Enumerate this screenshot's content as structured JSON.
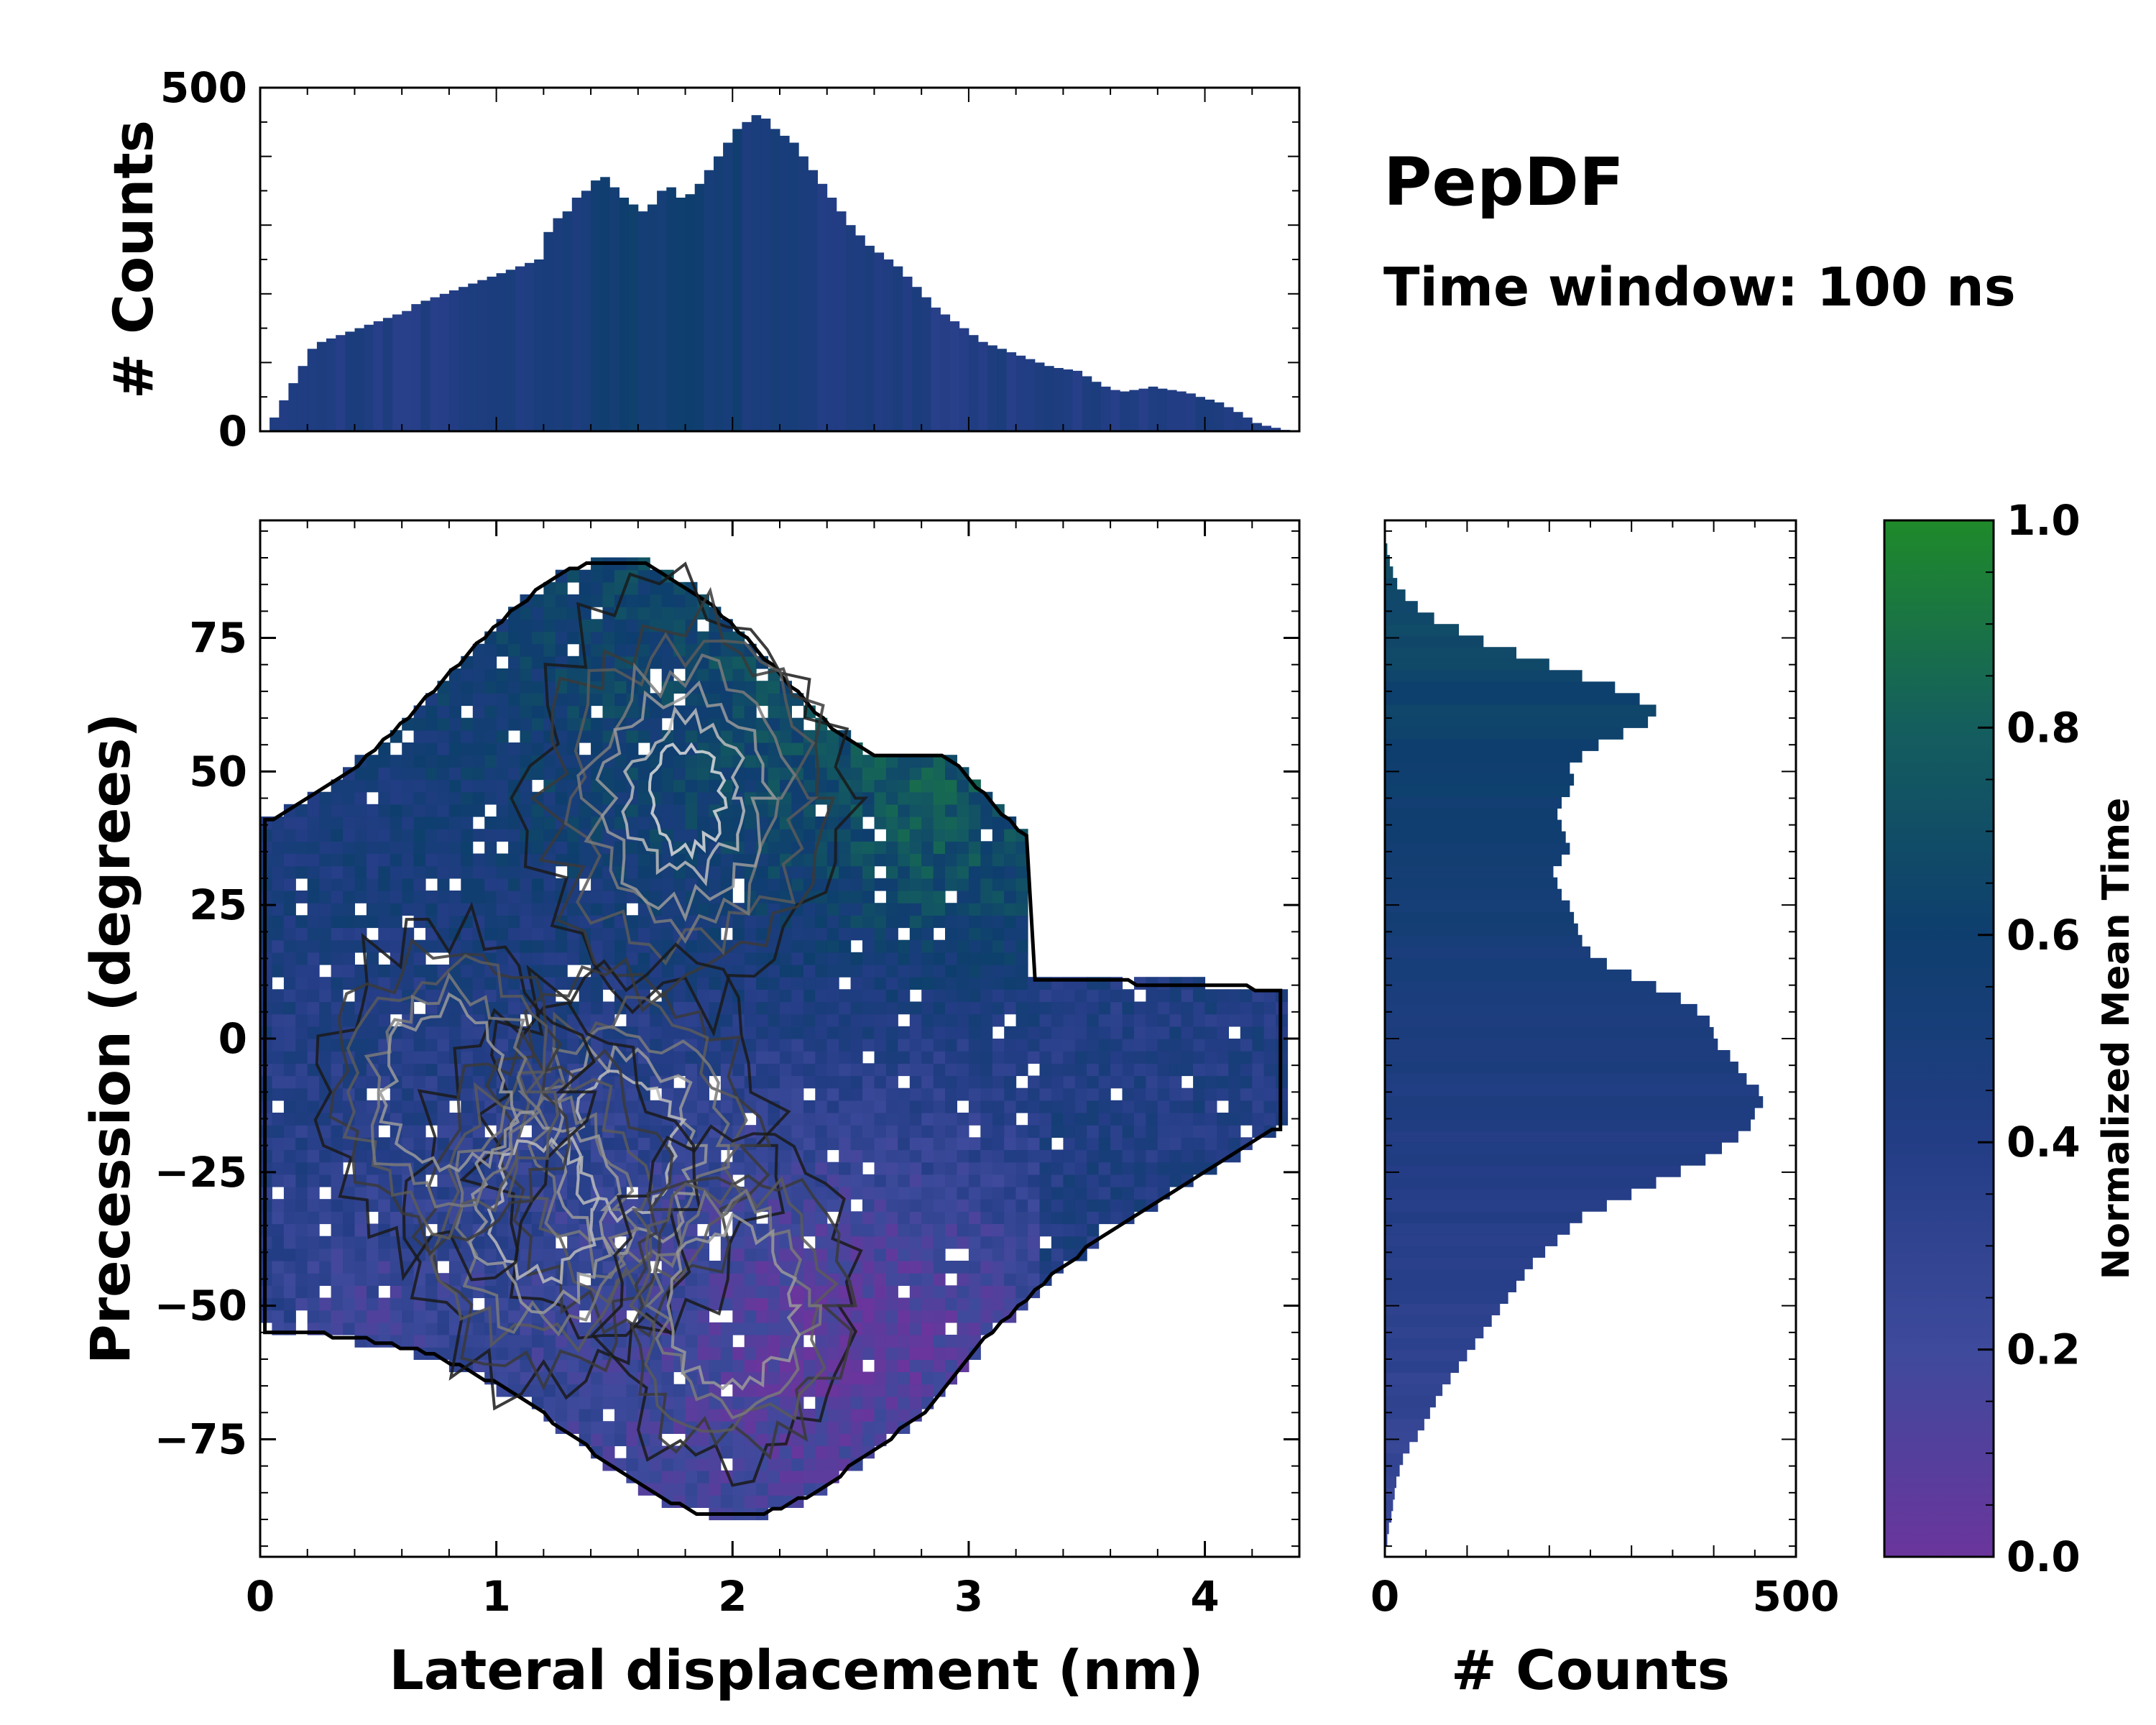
{
  "chart_data": {
    "type": "heatmap",
    "title": "PepDF",
    "subtitle": "Time window: 100 ns",
    "main": {
      "xlabel": "Lateral displacement (nm)",
      "ylabel": "Precession (degrees)",
      "xlim": [
        0,
        4.4
      ],
      "ylim": [
        -97,
        97
      ],
      "xticks": [
        0,
        1,
        2,
        3,
        4
      ],
      "yticks": [
        -75,
        -50,
        -25,
        0,
        25,
        50,
        75
      ],
      "ytick_labels": [
        "−75",
        "−50",
        "−25",
        "0",
        "25",
        "50",
        "75"
      ],
      "density_peaks": [
        {
          "x": 1.8,
          "y": 45,
          "weight": 1.0
        },
        {
          "x": 1.55,
          "y": -20,
          "weight": 0.8
        },
        {
          "x": 1.2,
          "y": -32,
          "weight": 0.7
        },
        {
          "x": 0.8,
          "y": -10,
          "weight": 0.55
        },
        {
          "x": 2.0,
          "y": -50,
          "weight": 0.5
        }
      ]
    },
    "top_histogram": {
      "ylabel": "# Counts",
      "ylim": [
        0,
        500
      ],
      "yticks": [
        0,
        500
      ],
      "x_range": [
        0,
        4.4
      ],
      "bin_counts": [
        0,
        20,
        45,
        70,
        95,
        120,
        130,
        135,
        140,
        145,
        150,
        155,
        160,
        165,
        170,
        175,
        185,
        190,
        195,
        200,
        205,
        210,
        215,
        220,
        225,
        230,
        235,
        240,
        245,
        250,
        290,
        310,
        320,
        340,
        350,
        365,
        370,
        355,
        340,
        330,
        320,
        330,
        350,
        355,
        340,
        345,
        360,
        380,
        400,
        420,
        440,
        450,
        460,
        455,
        440,
        430,
        420,
        400,
        380,
        360,
        340,
        320,
        300,
        285,
        270,
        260,
        250,
        240,
        225,
        210,
        195,
        180,
        170,
        160,
        150,
        140,
        130,
        125,
        120,
        115,
        110,
        105,
        100,
        95,
        92,
        90,
        88,
        80,
        72,
        65,
        60,
        58,
        60,
        62,
        65,
        62,
        60,
        58,
        55,
        50,
        46,
        42,
        35,
        28,
        20,
        12,
        8,
        5,
        2,
        0
      ]
    },
    "right_histogram": {
      "xlabel": "# Counts",
      "xlim": [
        0,
        500
      ],
      "xticks": [
        0,
        500
      ],
      "y_range": [
        -97,
        97
      ],
      "bin_counts": [
        0,
        3,
        5,
        8,
        10,
        12,
        14,
        18,
        22,
        30,
        40,
        48,
        55,
        62,
        70,
        80,
        90,
        100,
        110,
        120,
        130,
        140,
        150,
        160,
        170,
        180,
        195,
        210,
        225,
        240,
        270,
        300,
        330,
        360,
        390,
        410,
        430,
        445,
        450,
        460,
        455,
        440,
        430,
        420,
        405,
        400,
        395,
        380,
        360,
        330,
        300,
        270,
        250,
        240,
        235,
        230,
        225,
        215,
        210,
        205,
        215,
        225,
        220,
        215,
        210,
        215,
        225,
        230,
        225,
        240,
        260,
        290,
        320,
        330,
        310,
        280,
        240,
        200,
        160,
        120,
        90,
        60,
        40,
        25,
        15,
        10,
        6,
        3,
        1,
        0
      ]
    },
    "colorbar": {
      "label": "Normalized Mean Time",
      "range": [
        0,
        1
      ],
      "ticks": [
        0,
        0.2,
        0.4,
        0.6,
        0.8,
        1.0
      ],
      "tick_labels": [
        "0.0",
        "0.2",
        "0.4",
        "0.6",
        "0.8",
        "1.0"
      ],
      "colors": [
        "#6a359c",
        "#3e4a9c",
        "#233d85",
        "#0e3e6e",
        "#145e5e",
        "#1f8a2a"
      ]
    }
  }
}
